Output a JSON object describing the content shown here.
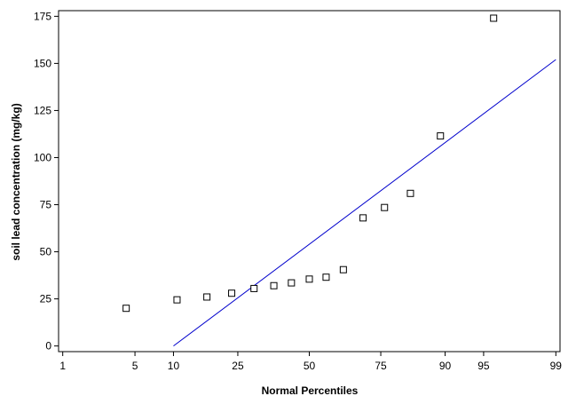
{
  "chart_data": {
    "type": "scatter",
    "title": "",
    "xlabel": "Normal Percentiles",
    "ylabel": "soil lead concentration (mg/kg)",
    "x_scale": "normal-probability",
    "x_ticks": [
      1,
      5,
      10,
      25,
      50,
      75,
      90,
      95,
      99
    ],
    "x_tick_labels": [
      "1",
      "5",
      "10",
      "25",
      "50",
      "75",
      "90",
      "95",
      "99"
    ],
    "xlim": [
      0.9,
      99.1
    ],
    "y_ticks": [
      0,
      25,
      50,
      75,
      100,
      125,
      150,
      175
    ],
    "y_tick_labels": [
      "0",
      "25",
      "50",
      "75",
      "100",
      "125",
      "150",
      "175"
    ],
    "ylim": [
      -3,
      178
    ],
    "grid": false,
    "legend": "none",
    "marker": "open-square",
    "colors": {
      "points": "#000000",
      "fit_line": "#0000cc",
      "axes": "#000000"
    },
    "series": [
      {
        "points": [
          {
            "x": 4.2,
            "y": 20
          },
          {
            "x": 10.6,
            "y": 24.5
          },
          {
            "x": 16.7,
            "y": 26
          },
          {
            "x": 23.2,
            "y": 28
          },
          {
            "x": 30.1,
            "y": 30.5
          },
          {
            "x": 36.9,
            "y": 32
          },
          {
            "x": 43.3,
            "y": 33.5
          },
          {
            "x": 50.0,
            "y": 35.5
          },
          {
            "x": 56.3,
            "y": 36.5
          },
          {
            "x": 62.6,
            "y": 40.5
          },
          {
            "x": 69.4,
            "y": 68
          },
          {
            "x": 76.1,
            "y": 73.5
          },
          {
            "x": 83.0,
            "y": 81
          },
          {
            "x": 89.2,
            "y": 111.5
          },
          {
            "x": 95.9,
            "y": 174
          }
        ]
      }
    ],
    "fit_line": {
      "from": {
        "x": 10,
        "y": 0
      },
      "to": {
        "x": 99,
        "y": 152
      }
    }
  }
}
